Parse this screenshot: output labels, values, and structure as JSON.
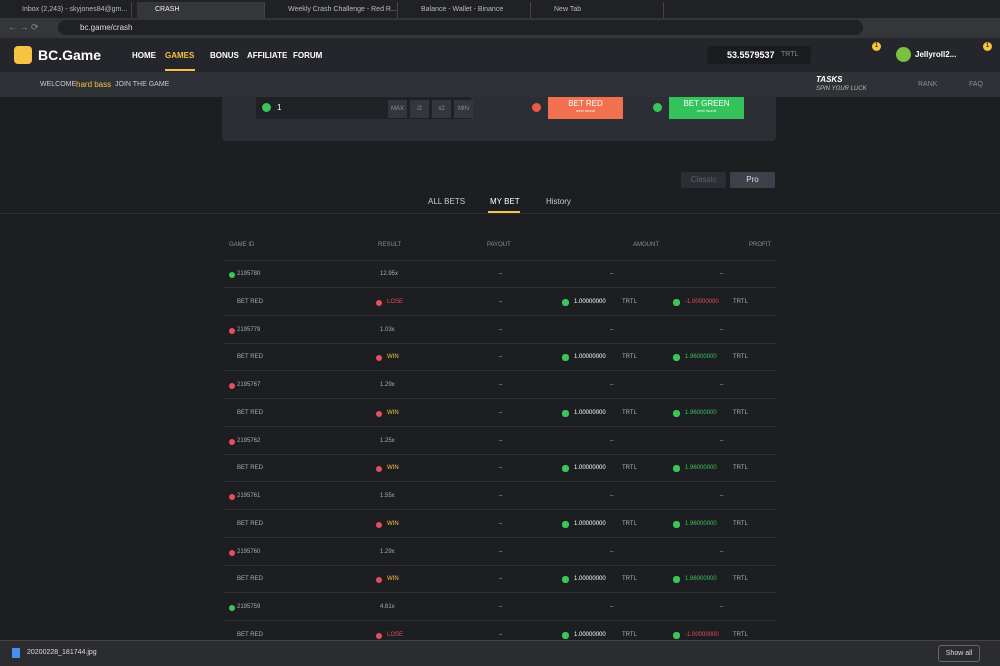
{
  "browser": {
    "tabs": [
      "Inbox (2,243) - skyjones84@gm...",
      "CRASH",
      "Weekly Crash Challenge - Red R...",
      "Balance - Wallet - Binance",
      "New Tab"
    ],
    "url": "bc.game/crash"
  },
  "header": {
    "logo": "BC.Game",
    "nav": [
      "HOME",
      "GAMES",
      "BONUS",
      "AFFILIATE",
      "FORUM"
    ],
    "balance": "53.5579537",
    "currency": "TRTL",
    "badges": [
      "1",
      "1"
    ],
    "user": "Jellyroll2..."
  },
  "welcome": {
    "prefix": "WELCOME",
    "name": "hard bass",
    "suffix": "JOIN THE GAME",
    "tasks": "TASKS",
    "tasks_sub": "SPIN YOUR LUCK",
    "rank": "RANK",
    "faq": "FAQ"
  },
  "bet_panel": {
    "amount": "1",
    "buttons": [
      "MAX",
      "/2",
      "x2",
      "MIN"
    ],
    "bet_red": "BET RED",
    "bet_red_sub": "next round",
    "bet_green": "BET GREEN",
    "bet_green_sub": "next round"
  },
  "modes": [
    "Classic",
    "Pro"
  ],
  "tabs": [
    "ALL BETS",
    "MY BET",
    "History"
  ],
  "table": {
    "headers": [
      "GAME ID",
      "RESULT",
      "PAYOUT",
      "AMOUNT",
      "PROFIT"
    ],
    "games": [
      {
        "id": "2195780",
        "color": "#3bc55a",
        "result": "12.95x",
        "blank": "–",
        "bet": "BET RED",
        "status": "LOSE",
        "payout": "–",
        "amount": "1.00000000",
        "unit": "TRTL",
        "profit": "-1.00000000"
      },
      {
        "id": "2195779",
        "color": "#ea4d5d",
        "result": "1.03x",
        "blank": "–",
        "bet": "BET RED",
        "status": "WIN",
        "payout": "–",
        "amount": "1.00000000",
        "unit": "TRTL",
        "profit": "1.96000000"
      },
      {
        "id": "2195767",
        "color": "#ea4d5d",
        "result": "1.29x",
        "blank": "–",
        "bet": "BET RED",
        "status": "WIN",
        "payout": "–",
        "amount": "1.00000000",
        "unit": "TRTL",
        "profit": "1.96000000"
      },
      {
        "id": "2195762",
        "color": "#ea4d5d",
        "result": "1.25x",
        "blank": "–",
        "bet": "BET RED",
        "status": "WIN",
        "payout": "–",
        "amount": "1.00000000",
        "unit": "TRTL",
        "profit": "1.96000000"
      },
      {
        "id": "2195761",
        "color": "#ea4d5d",
        "result": "1.55x",
        "blank": "–",
        "bet": "BET RED",
        "status": "WIN",
        "payout": "–",
        "amount": "1.00000000",
        "unit": "TRTL",
        "profit": "1.96000000"
      },
      {
        "id": "2195760",
        "color": "#ea4d5d",
        "result": "1.29x",
        "blank": "–",
        "bet": "BET RED",
        "status": "WIN",
        "payout": "–",
        "amount": "1.00000000",
        "unit": "TRTL",
        "profit": "1.96000000"
      },
      {
        "id": "2195759",
        "color": "#3bc55a",
        "result": "4.61x",
        "blank": "–",
        "bet": "BET RED",
        "status": "LOSE",
        "payout": "–",
        "amount": "1.00000000",
        "unit": "TRTL",
        "profit": "-1.00000000"
      }
    ]
  },
  "downloads": {
    "file": "20200228_181744.jpg",
    "show_all": "Show all"
  }
}
